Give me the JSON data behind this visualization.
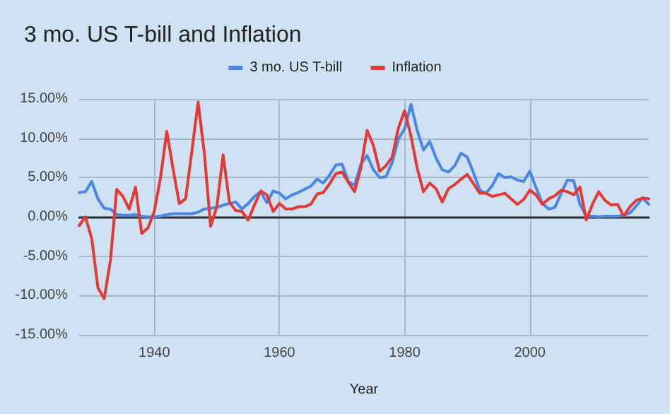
{
  "chart_data": {
    "type": "line",
    "title": "3 mo. US T-bill and Inflation",
    "xlabel": "Year",
    "x": [
      1928,
      1929,
      1930,
      1931,
      1932,
      1933,
      1934,
      1935,
      1936,
      1937,
      1938,
      1939,
      1940,
      1941,
      1942,
      1943,
      1944,
      1945,
      1946,
      1947,
      1948,
      1949,
      1950,
      1951,
      1952,
      1953,
      1954,
      1955,
      1956,
      1957,
      1958,
      1959,
      1960,
      1961,
      1962,
      1963,
      1964,
      1965,
      1966,
      1967,
      1968,
      1969,
      1970,
      1971,
      1972,
      1973,
      1974,
      1975,
      1976,
      1977,
      1978,
      1979,
      1980,
      1981,
      1982,
      1983,
      1984,
      1985,
      1986,
      1987,
      1988,
      1989,
      1990,
      1991,
      1992,
      1993,
      1994,
      1995,
      1996,
      1997,
      1998,
      1999,
      2000,
      2001,
      2002,
      2003,
      2004,
      2005,
      2006,
      2007,
      2008,
      2009,
      2010,
      2011,
      2012,
      2013,
      2014,
      2015,
      2016,
      2017,
      2018,
      2019
    ],
    "series": [
      {
        "name": "3 mo. US T-bill",
        "color": "#4a86e8",
        "values": [
          3.1,
          3.2,
          4.5,
          2.3,
          1.1,
          1.0,
          0.3,
          0.2,
          0.2,
          0.3,
          0.1,
          0.0,
          0.0,
          0.1,
          0.3,
          0.4,
          0.4,
          0.4,
          0.4,
          0.6,
          1.0,
          1.1,
          1.2,
          1.5,
          1.7,
          1.9,
          1.0,
          1.7,
          2.6,
          3.2,
          1.8,
          3.3,
          3.0,
          2.3,
          2.8,
          3.1,
          3.5,
          3.9,
          4.8,
          4.3,
          5.3,
          6.6,
          6.7,
          4.5,
          4.0,
          6.7,
          7.8,
          6.0,
          5.0,
          5.1,
          6.9,
          9.9,
          11.2,
          14.3,
          11.0,
          8.5,
          9.6,
          7.5,
          6.0,
          5.7,
          6.5,
          8.1,
          7.6,
          5.6,
          3.4,
          3.0,
          4.0,
          5.5,
          5.0,
          5.1,
          4.7,
          4.5,
          5.8,
          3.7,
          1.7,
          1.0,
          1.2,
          3.0,
          4.7,
          4.6,
          1.6,
          0.1,
          0.1,
          0.0,
          0.1,
          0.1,
          0.1,
          0.2,
          0.5,
          1.4,
          2.4,
          1.6
        ]
      },
      {
        "name": "Inflation",
        "color": "#e53935",
        "values": [
          -1.1,
          0.0,
          -2.7,
          -9.0,
          -10.4,
          -5.5,
          3.5,
          2.6,
          1.0,
          3.8,
          -2.1,
          -1.4,
          0.7,
          5.0,
          10.9,
          6.1,
          1.7,
          2.3,
          8.3,
          14.6,
          8.1,
          -1.2,
          1.3,
          7.9,
          1.9,
          0.8,
          0.7,
          -0.4,
          1.5,
          3.3,
          2.8,
          0.7,
          1.7,
          1.0,
          1.0,
          1.3,
          1.3,
          1.6,
          2.9,
          3.1,
          4.2,
          5.5,
          5.7,
          4.4,
          3.2,
          6.2,
          11.0,
          9.1,
          5.8,
          6.5,
          7.6,
          11.3,
          13.5,
          10.3,
          6.2,
          3.2,
          4.3,
          3.6,
          1.9,
          3.6,
          4.1,
          4.8,
          5.4,
          4.2,
          3.0,
          3.0,
          2.6,
          2.8,
          3.0,
          2.3,
          1.6,
          2.2,
          3.4,
          2.8,
          1.6,
          2.3,
          2.7,
          3.4,
          3.2,
          2.8,
          3.8,
          -0.4,
          1.6,
          3.2,
          2.1,
          1.5,
          1.6,
          0.1,
          1.3,
          2.1,
          2.4,
          2.3
        ]
      }
    ],
    "xlim": [
      1928,
      2019
    ],
    "xticks": [
      1940,
      1960,
      1980,
      2000
    ],
    "ylim": [
      -15,
      15
    ],
    "yticks": [
      {
        "value": -15,
        "label": "-15.00%"
      },
      {
        "value": -10,
        "label": "-10.00%"
      },
      {
        "value": -5,
        "label": "-5.00%"
      },
      {
        "value": 0,
        "label": "0.00%"
      },
      {
        "value": 5,
        "label": "5.00%"
      },
      {
        "value": 10,
        "label": "10.00%"
      },
      {
        "value": 15,
        "label": "15.00%"
      }
    ],
    "grid": true,
    "legend": "top",
    "marker": "none",
    "line_style": "solid"
  }
}
